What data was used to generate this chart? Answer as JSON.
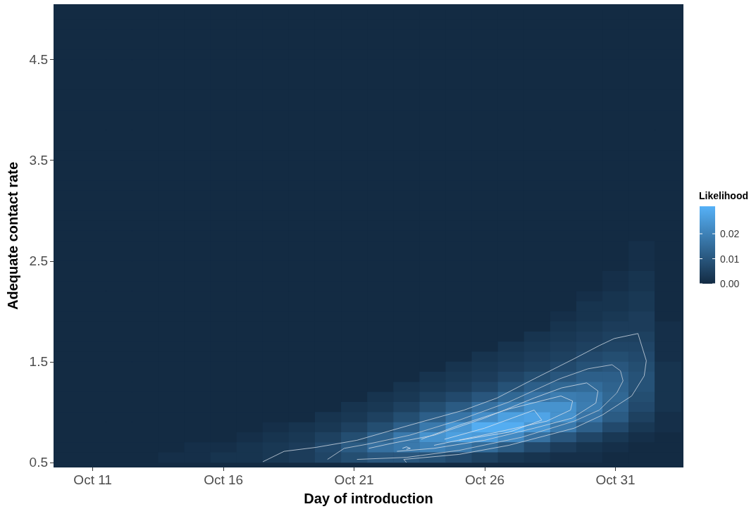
{
  "chart_data": {
    "type": "heatmap",
    "xlabel": "Day of introduction",
    "ylabel": "Adequate contact rate",
    "clabel": "Likelihood",
    "x": [
      "--10-10",
      "--10-11",
      "--10-12",
      "--10-13",
      "--10-14",
      "--10-15",
      "--10-16",
      "--10-17",
      "--10-18",
      "--10-19",
      "--10-20",
      "--10-21",
      "--10-22",
      "--10-23",
      "--10-24",
      "--10-25",
      "--10-26",
      "--10-27",
      "--10-28",
      "--10-29",
      "--10-30",
      "--10-31",
      "--11-01",
      "--11-02"
    ],
    "y": [
      4.95,
      4.85,
      4.75,
      4.65,
      4.55,
      4.45,
      4.35,
      4.25,
      4.15,
      4.05,
      3.95,
      3.85,
      3.75,
      3.65,
      3.55,
      3.45,
      3.35,
      3.25,
      3.15,
      3.05,
      2.95,
      2.85,
      2.75,
      2.65,
      2.55,
      2.45,
      2.35,
      2.25,
      2.15,
      2.05,
      1.95,
      1.85,
      1.75,
      1.65,
      1.55,
      1.45,
      1.35,
      1.25,
      1.15,
      1.05,
      0.95,
      0.85,
      0.75,
      0.65,
      0.55
    ],
    "xlim": [
      "--10-09T12:00",
      "--11-02T14:24"
    ],
    "ylim": [
      0.45,
      5.05
    ],
    "xticks": [
      {
        "value": "--10-11",
        "label": "Oct 11"
      },
      {
        "value": "--10-16",
        "label": "Oct 16"
      },
      {
        "value": "--10-21",
        "label": "Oct 21"
      },
      {
        "value": "--10-26",
        "label": "Oct 26"
      },
      {
        "value": "--10-31",
        "label": "Oct 31"
      }
    ],
    "yticks": [
      0.5,
      1.5,
      2.5,
      3.5,
      4.5
    ],
    "clim": [
      0,
      0.031
    ],
    "cticks": [
      {
        "value": 0,
        "label": "0.00"
      },
      {
        "value": 0.01,
        "label": "0.01"
      },
      {
        "value": 0.02,
        "label": "0.02"
      }
    ],
    "cells": [
      [
        0,
        0,
        0,
        0,
        0,
        0,
        0,
        0,
        0,
        0,
        0,
        0,
        0,
        0,
        0,
        0,
        0,
        0,
        0,
        0,
        0,
        0,
        0,
        0
      ],
      [
        0,
        0,
        0,
        0,
        0,
        0,
        0,
        0,
        0,
        0,
        0,
        0,
        0,
        0,
        0,
        0,
        0,
        0,
        0,
        0,
        0,
        0,
        0,
        0
      ],
      [
        0,
        0,
        0,
        0,
        0,
        0,
        0,
        0,
        0,
        0,
        0,
        0,
        0,
        0,
        0,
        0,
        0,
        0,
        0,
        0,
        0,
        0,
        0,
        0
      ],
      [
        0,
        0,
        0,
        0,
        0,
        0,
        0,
        0,
        0,
        0,
        0,
        0,
        0,
        0,
        0,
        0,
        0,
        0,
        0,
        0,
        0,
        0,
        0,
        0
      ],
      [
        0,
        0,
        0,
        0,
        0,
        0,
        0,
        0,
        0,
        0,
        0,
        0,
        0,
        0,
        0,
        0,
        0,
        0,
        0,
        0,
        0,
        0,
        0,
        0
      ],
      [
        0,
        0,
        0,
        0,
        0,
        0,
        0,
        0,
        0,
        0,
        0,
        0,
        0,
        0,
        0,
        0,
        0,
        0,
        0,
        0,
        0,
        0,
        0,
        0
      ],
      [
        0,
        0,
        0,
        0,
        0,
        0,
        0,
        0,
        0,
        0,
        0,
        0,
        0,
        0,
        0,
        0,
        0,
        0,
        0,
        0,
        0,
        0,
        0,
        0
      ],
      [
        0,
        0,
        0,
        0,
        0,
        0,
        0,
        0,
        0,
        0,
        0,
        0,
        0,
        0,
        0,
        0,
        0,
        0,
        0,
        0,
        0,
        0,
        0,
        0
      ],
      [
        0,
        0,
        0,
        0,
        0,
        0,
        0,
        0,
        0,
        0,
        0,
        0,
        0,
        0,
        0,
        0,
        0,
        0,
        0,
        0,
        0,
        0,
        0,
        0
      ],
      [
        0,
        0,
        0,
        0,
        0,
        0,
        0,
        0,
        0,
        0,
        0,
        0,
        0,
        0,
        0,
        0,
        0,
        0,
        0,
        0,
        0,
        0,
        0,
        0
      ],
      [
        0,
        0,
        0,
        0,
        0,
        0,
        0,
        0,
        0,
        0,
        0,
        0,
        0,
        0,
        0,
        0,
        0,
        0,
        0,
        0,
        0,
        0,
        0,
        0
      ],
      [
        0,
        0,
        0,
        0,
        0,
        0,
        0,
        0,
        0,
        0,
        0,
        0,
        0,
        0,
        0,
        0,
        0,
        0,
        0,
        0,
        0,
        0,
        0,
        0
      ],
      [
        0,
        0,
        0,
        0,
        0,
        0,
        0,
        0,
        0,
        0,
        0,
        0,
        0,
        0,
        0,
        0,
        0,
        0,
        0,
        0,
        0,
        0,
        0,
        0
      ],
      [
        0,
        0,
        0,
        0,
        0,
        0,
        0,
        0,
        0,
        0,
        0,
        0,
        0,
        0,
        0,
        0,
        0,
        0,
        0,
        0,
        0,
        0,
        0,
        0
      ],
      [
        0,
        0,
        0,
        0,
        0,
        0,
        0,
        0,
        0,
        0,
        0,
        0,
        0,
        0,
        0,
        0,
        0,
        0,
        0,
        0,
        0,
        0,
        0,
        0
      ],
      [
        0,
        0,
        0,
        0,
        0,
        0,
        0,
        0,
        0,
        0,
        0,
        0,
        0,
        0,
        0,
        0,
        0,
        0,
        0,
        0,
        0,
        0,
        0,
        0
      ],
      [
        0,
        0,
        0,
        0,
        0,
        0,
        0,
        0,
        0,
        0,
        0,
        0,
        0,
        0,
        0,
        0,
        0,
        0,
        0,
        0,
        0,
        0,
        0,
        0
      ],
      [
        0,
        0,
        0,
        0,
        0,
        0,
        0,
        0,
        0,
        0,
        0,
        0,
        0,
        0,
        0,
        0,
        0,
        0,
        0,
        0,
        0,
        0,
        0,
        0
      ],
      [
        0,
        0,
        0,
        0,
        0,
        0,
        0,
        0,
        0,
        0,
        0,
        0,
        0,
        0,
        0,
        0,
        0,
        0,
        0,
        0,
        0,
        0,
        0,
        0
      ],
      [
        0,
        0,
        0,
        0,
        0,
        0,
        0,
        0,
        0,
        0,
        0,
        0,
        0,
        0,
        0,
        0,
        0,
        0,
        0,
        0,
        0,
        0,
        0,
        0
      ],
      [
        0,
        0,
        0,
        0,
        0,
        0,
        0,
        0,
        0,
        0,
        0,
        0,
        0,
        0,
        0,
        0,
        0,
        0,
        0,
        0,
        0,
        0,
        0,
        0
      ],
      [
        0,
        0,
        0,
        0,
        0,
        0,
        0,
        0,
        0,
        0,
        0,
        0,
        0,
        0,
        0,
        0,
        0,
        0,
        0,
        0,
        0,
        0,
        0,
        0
      ],
      [
        0,
        0,
        0,
        0,
        0,
        0,
        0,
        0,
        0,
        0,
        0,
        0,
        0,
        0,
        0,
        0,
        0,
        0,
        0,
        0,
        0,
        0,
        0,
        0
      ],
      [
        0,
        0,
        0,
        0,
        0,
        0,
        0,
        0,
        0,
        0,
        0,
        0,
        0,
        0,
        0,
        0,
        0,
        0,
        0,
        0,
        0,
        0,
        0.001,
        0
      ],
      [
        0,
        0,
        0,
        0,
        0,
        0,
        0,
        0,
        0,
        0,
        0,
        0,
        0,
        0,
        0,
        0,
        0,
        0,
        0,
        0,
        0,
        0,
        0.001,
        0
      ],
      [
        0,
        0,
        0,
        0,
        0,
        0,
        0,
        0,
        0,
        0,
        0,
        0,
        0,
        0,
        0,
        0,
        0,
        0,
        0,
        0,
        0,
        0,
        0.001,
        0
      ],
      [
        0,
        0,
        0,
        0,
        0,
        0,
        0,
        0,
        0,
        0,
        0,
        0,
        0,
        0,
        0,
        0,
        0,
        0,
        0,
        0,
        0,
        0.001,
        0.002,
        0
      ],
      [
        0,
        0,
        0,
        0,
        0,
        0,
        0,
        0,
        0,
        0,
        0,
        0,
        0,
        0,
        0,
        0,
        0,
        0,
        0,
        0,
        0,
        0.001,
        0.002,
        0
      ],
      [
        0,
        0,
        0,
        0,
        0,
        0,
        0,
        0,
        0,
        0,
        0,
        0,
        0,
        0,
        0,
        0,
        0,
        0,
        0,
        0,
        0.001,
        0.002,
        0.003,
        0
      ],
      [
        0,
        0,
        0,
        0,
        0,
        0,
        0,
        0,
        0,
        0,
        0,
        0,
        0,
        0,
        0,
        0,
        0,
        0,
        0,
        0,
        0.002,
        0.002,
        0.003,
        0
      ],
      [
        0,
        0,
        0,
        0,
        0,
        0,
        0,
        0,
        0,
        0,
        0,
        0,
        0,
        0,
        0,
        0,
        0,
        0,
        0,
        0.001,
        0.002,
        0.003,
        0.004,
        0
      ],
      [
        0,
        0,
        0,
        0,
        0,
        0,
        0,
        0,
        0,
        0,
        0,
        0,
        0,
        0,
        0,
        0,
        0,
        0,
        0,
        0.002,
        0.003,
        0.004,
        0.004,
        0.001
      ],
      [
        0,
        0,
        0,
        0,
        0,
        0,
        0,
        0,
        0,
        0,
        0,
        0,
        0,
        0,
        0,
        0,
        0,
        0,
        0.002,
        0.003,
        0.004,
        0.005,
        0.005,
        0.001
      ],
      [
        0,
        0,
        0,
        0,
        0,
        0,
        0,
        0,
        0,
        0,
        0,
        0,
        0,
        0,
        0,
        0,
        0,
        0.002,
        0.003,
        0.004,
        0.005,
        0.006,
        0.006,
        0.001
      ],
      [
        0,
        0,
        0,
        0,
        0,
        0,
        0,
        0,
        0,
        0,
        0,
        0,
        0,
        0,
        0,
        0,
        0.002,
        0.003,
        0.004,
        0.005,
        0.007,
        0.008,
        0.007,
        0.001
      ],
      [
        0,
        0,
        0,
        0,
        0,
        0,
        0,
        0,
        0,
        0,
        0,
        0,
        0,
        0,
        0,
        0.002,
        0.003,
        0.004,
        0.005,
        0.007,
        0.009,
        0.01,
        0.008,
        0.002
      ],
      [
        0,
        0,
        0,
        0,
        0,
        0,
        0,
        0,
        0,
        0,
        0,
        0,
        0,
        0,
        0.002,
        0.003,
        0.004,
        0.006,
        0.008,
        0.01,
        0.012,
        0.012,
        0.009,
        0.002
      ],
      [
        0,
        0,
        0,
        0,
        0,
        0,
        0,
        0,
        0,
        0,
        0,
        0,
        0,
        0.002,
        0.003,
        0.004,
        0.006,
        0.009,
        0.012,
        0.014,
        0.015,
        0.013,
        0.009,
        0.002
      ],
      [
        0,
        0,
        0,
        0,
        0,
        0,
        0,
        0,
        0,
        0,
        0,
        0,
        0.002,
        0.003,
        0.005,
        0.007,
        0.01,
        0.014,
        0.017,
        0.019,
        0.018,
        0.014,
        0.008,
        0.002
      ],
      [
        0,
        0,
        0,
        0,
        0,
        0,
        0,
        0,
        0,
        0,
        0,
        0.002,
        0.003,
        0.005,
        0.008,
        0.011,
        0.016,
        0.02,
        0.024,
        0.024,
        0.019,
        0.013,
        0.007,
        0.002
      ],
      [
        0,
        0,
        0,
        0,
        0,
        0,
        0,
        0,
        0,
        0,
        0.002,
        0.003,
        0.005,
        0.008,
        0.012,
        0.017,
        0.023,
        0.027,
        0.028,
        0.024,
        0.017,
        0.011,
        0.005,
        0.001
      ],
      [
        0,
        0,
        0,
        0,
        0,
        0,
        0,
        0,
        0.001,
        0.002,
        0.003,
        0.005,
        0.008,
        0.012,
        0.018,
        0.025,
        0.03,
        0.03,
        0.025,
        0.018,
        0.012,
        0.007,
        0.003,
        0.001
      ],
      [
        0,
        0,
        0,
        0,
        0,
        0,
        0,
        0.001,
        0.002,
        0.003,
        0.005,
        0.008,
        0.013,
        0.018,
        0.024,
        0.027,
        0.026,
        0.022,
        0.016,
        0.01,
        0.006,
        0.003,
        0.001,
        0
      ],
      [
        0,
        0,
        0,
        0,
        0,
        0.001,
        0.001,
        0.002,
        0.003,
        0.004,
        0.007,
        0.011,
        0.016,
        0.018,
        0.02,
        0.018,
        0.015,
        0.011,
        0.007,
        0.004,
        0.002,
        0.001,
        0,
        0
      ],
      [
        0,
        0,
        0,
        0,
        0.001,
        0.001,
        0.002,
        0.002,
        0.003,
        0.004,
        0.006,
        0.008,
        0.01,
        0.01,
        0.009,
        0.007,
        0.005,
        0.003,
        0.002,
        0.001,
        0.001,
        0,
        0,
        0
      ]
    ],
    "series": [
      {
        "type": "line",
        "color": "#c5d0dc",
        "x": [
          "--10-17T12:14",
          "--10-18T07:41",
          "--10-19T13:12",
          "--10-21T02:38",
          "--10-22T10:48",
          "--10-23T16:19",
          "--10-25T05:02",
          "--10-26T11:17",
          "--10-27T21:22",
          "--10-29T10:05",
          "--10-30T09:07",
          "--10-30T22:48",
          "--10-31T20:38",
          "--11-01T04:19",
          "--11-01T02:24",
          "--10-31T14:53",
          "--10-30T11:46",
          "--10-29T10:05",
          "--10-26T22:05",
          "--10-25T00:29",
          "--10-22T21:36",
          "--10-23T00:00"
        ],
        "values": [
          0.507,
          0.61,
          0.65,
          0.72,
          0.82,
          0.91,
          1.02,
          1.14,
          1.33,
          1.53,
          1.66,
          1.73,
          1.78,
          1.51,
          1.36,
          1.16,
          0.97,
          0.84,
          0.67,
          0.58,
          0.53,
          0.5
        ]
      },
      {
        "type": "line",
        "color": "#bfcad6",
        "x": [
          "--10-19T23:31",
          "--10-20T14:53",
          "--10-21T11:31",
          "--10-23T02:53",
          "--10-25T00:29",
          "--10-26T22:05",
          "--10-28T20:38",
          "--10-29T22:48",
          "--10-30T20:53",
          "--10-31T04:34",
          "--10-31T06:58",
          "--10-31T01:12",
          "--10-30T09:07",
          "--10-29T10:05",
          "--10-27T09:50",
          "--10-25T00:29",
          "--10-23T00:14",
          "--10-21T02:38"
        ],
        "values": [
          0.53,
          0.64,
          0.68,
          0.77,
          0.92,
          1.1,
          1.33,
          1.43,
          1.47,
          1.41,
          1.31,
          1.19,
          1.02,
          0.91,
          0.75,
          0.62,
          0.55,
          0.53
        ]
      },
      {
        "type": "line",
        "color": "#cbd6e2",
        "x": [
          "--10-21T13:26",
          "--10-22T10:48",
          "--10-24T01:26",
          "--10-25T23:46",
          "--10-27T21:22",
          "--10-28T22:34",
          "--10-29T21:36",
          "--10-30T07:55",
          "--10-30T06:00",
          "--10-29T08:10",
          "--10-27T21:22",
          "--10-25T23:46",
          "--10-24T01:26",
          "--10-22T15:22"
        ],
        "values": [
          0.64,
          0.69,
          0.77,
          0.94,
          1.14,
          1.24,
          1.29,
          1.21,
          1.09,
          0.94,
          0.84,
          0.72,
          0.64,
          0.61
        ]
      },
      {
        "type": "line",
        "color": "#d1dce8",
        "x": [
          "--10-23T13:41",
          "--10-25T00:29",
          "--10-26T22:05",
          "--10-28T21:50",
          "--10-29T08:38",
          "--10-29T06:43",
          "--10-28T08:53",
          "--10-26T11:17",
          "--10-24T01:26"
        ],
        "values": [
          0.73,
          0.87,
          1.03,
          1.16,
          1.11,
          1.02,
          0.91,
          0.8,
          0.67
        ]
      },
      {
        "type": "line",
        "color": "#d7e2ee",
        "x": [
          "--10-24T11:02",
          "--10-25T23:46",
          "--10-27T21:22",
          "--10-28T04:19",
          "--10-26T22:05",
          "--10-25T00:29"
        ],
        "values": [
          0.73,
          0.84,
          1.02,
          0.92,
          0.8,
          0.72
        ]
      },
      {
        "type": "line",
        "color": "#dde8f4",
        "x": [
          "--10-22T20:24",
          "--10-23T00:00",
          "--10-23T03:36",
          "--10-23T00:00"
        ],
        "values": [
          0.64,
          0.655,
          0.64,
          0.63
        ]
      }
    ],
    "marker": "none",
    "line_style": "solid"
  }
}
